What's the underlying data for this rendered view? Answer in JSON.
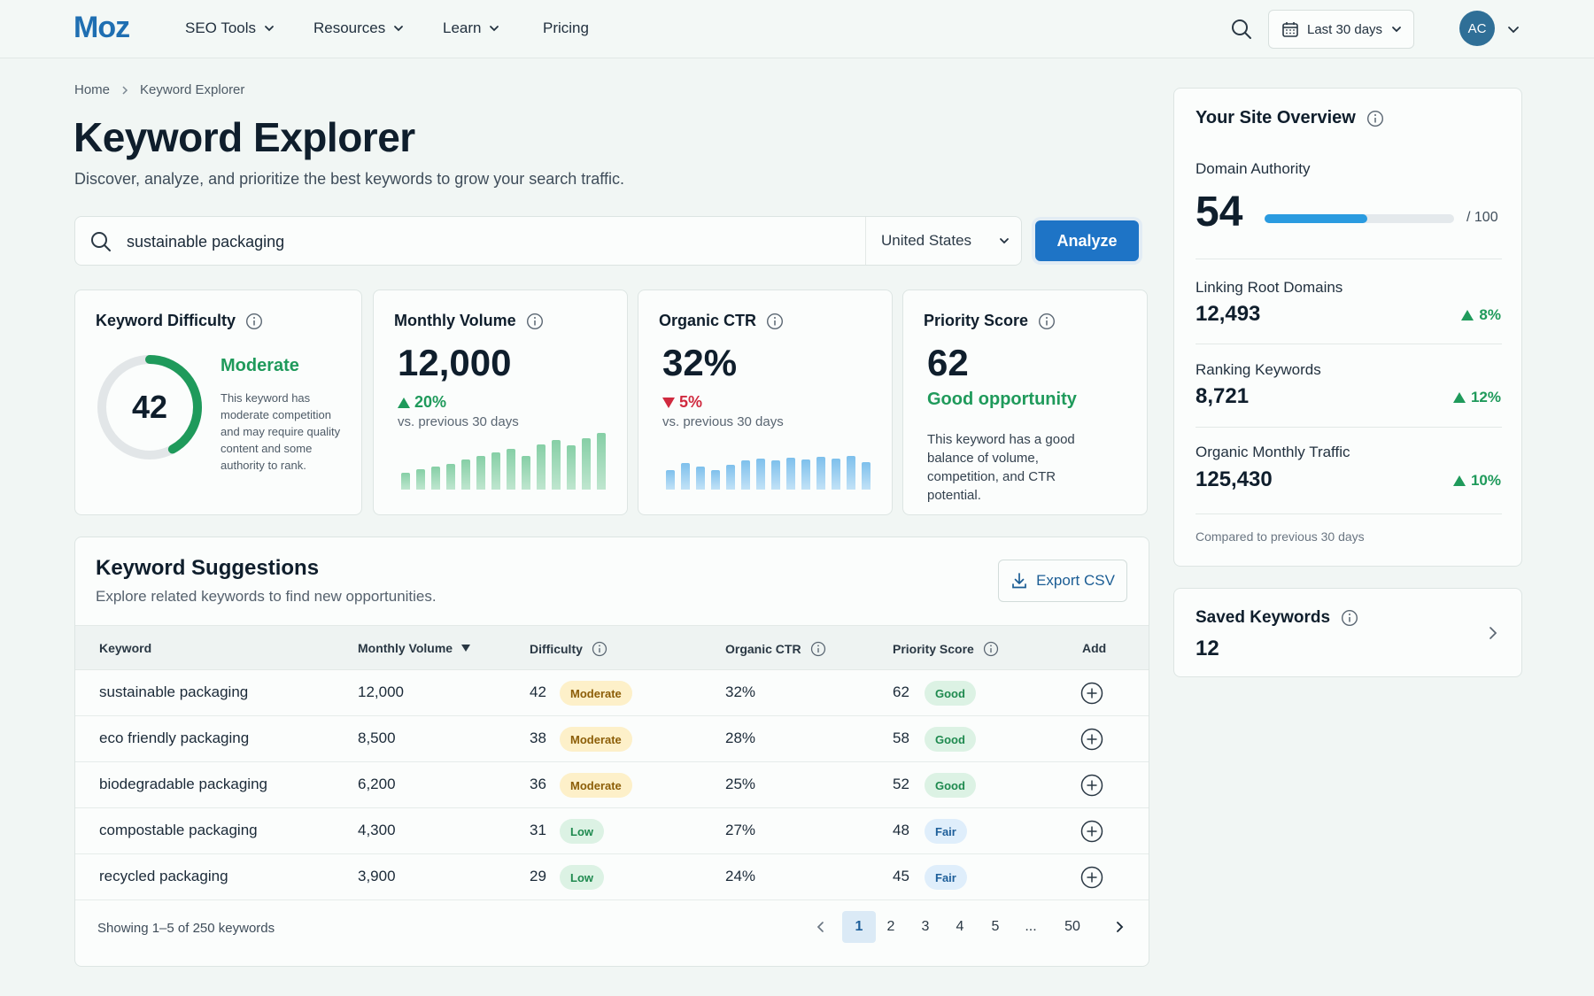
{
  "nav": {
    "logo": "Moz",
    "items": [
      {
        "label": "SEO Tools",
        "has_menu": true
      },
      {
        "label": "Resources",
        "has_menu": true
      },
      {
        "label": "Learn",
        "has_menu": true
      },
      {
        "label": "Pricing",
        "has_menu": false
      }
    ],
    "date_range": "Last 30 days",
    "avatar_initials": "AC"
  },
  "breadcrumb": {
    "home": "Home",
    "current": "Keyword Explorer"
  },
  "page": {
    "title": "Keyword Explorer",
    "subtitle": "Discover, analyze, and prioritize the best keywords to grow your search traffic."
  },
  "search": {
    "value": "sustainable packaging",
    "country": "United States",
    "button": "Analyze"
  },
  "metrics": {
    "difficulty": {
      "title": "Keyword Difficulty",
      "value": 42,
      "value_text": "42",
      "label": "Moderate",
      "description": "This keyword has moderate competition and may require quality content and some authority to rank.",
      "gauge_fraction": 0.42
    },
    "volume": {
      "title": "Monthly Volume",
      "value": "12,000",
      "trend": "20%",
      "trend_dir": "up",
      "trend_note": "vs. previous 30 days",
      "spark": [
        0.3,
        0.36,
        0.4,
        0.46,
        0.53,
        0.6,
        0.66,
        0.72,
        0.6,
        0.8,
        0.88,
        0.78,
        0.9,
        1.0
      ]
    },
    "ctr": {
      "title": "Organic CTR",
      "value": "32%",
      "trend": "5%",
      "trend_dir": "down",
      "trend_note": "vs. previous 30 days",
      "spark": [
        0.55,
        0.75,
        0.65,
        0.55,
        0.7,
        0.82,
        0.88,
        0.82,
        0.9,
        0.85,
        0.92,
        0.88,
        0.95,
        0.78
      ]
    },
    "priority": {
      "title": "Priority Score",
      "value": "62",
      "label": "Good opportunity",
      "description": "This keyword has a good balance of volume, competition, and CTR potential."
    }
  },
  "suggestions": {
    "title": "Keyword Suggestions",
    "subtitle": "Explore related keywords to find new opportunities.",
    "export_label": "Export CSV",
    "columns": {
      "keyword": "Keyword",
      "volume": "Monthly Volume",
      "difficulty": "Difficulty",
      "ctr": "Organic CTR",
      "priority": "Priority Score",
      "add": "Add"
    },
    "rows": [
      {
        "keyword": "sustainable packaging",
        "volume": "12,000",
        "difficulty": "42",
        "difficulty_label": "Moderate",
        "difficulty_kind": "moderate",
        "ctr": "32%",
        "priority": "62",
        "priority_label": "Good",
        "priority_kind": "good"
      },
      {
        "keyword": "eco friendly packaging",
        "volume": "8,500",
        "difficulty": "38",
        "difficulty_label": "Moderate",
        "difficulty_kind": "moderate",
        "ctr": "28%",
        "priority": "58",
        "priority_label": "Good",
        "priority_kind": "good"
      },
      {
        "keyword": "biodegradable packaging",
        "volume": "6,200",
        "difficulty": "36",
        "difficulty_label": "Moderate",
        "difficulty_kind": "moderate",
        "ctr": "25%",
        "priority": "52",
        "priority_label": "Good",
        "priority_kind": "good"
      },
      {
        "keyword": "compostable packaging",
        "volume": "4,300",
        "difficulty": "31",
        "difficulty_label": "Low",
        "difficulty_kind": "low",
        "ctr": "27%",
        "priority": "48",
        "priority_label": "Fair",
        "priority_kind": "fair"
      },
      {
        "keyword": "recycled packaging",
        "volume": "3,900",
        "difficulty": "29",
        "difficulty_label": "Low",
        "difficulty_kind": "low",
        "ctr": "24%",
        "priority": "45",
        "priority_label": "Fair",
        "priority_kind": "fair"
      }
    ],
    "showing": "Showing 1–5 of 250 keywords",
    "pages": [
      "1",
      "2",
      "3",
      "4",
      "5",
      "...",
      "50"
    ],
    "current_page": "1"
  },
  "site_overview": {
    "title": "Your Site Overview",
    "da_label": "Domain Authority",
    "da_value": "54",
    "da_max": "/ 100",
    "da_fraction": 0.54,
    "stats": [
      {
        "label": "Linking Root Domains",
        "value": "12,493",
        "trend": "8%"
      },
      {
        "label": "Ranking Keywords",
        "value": "8,721",
        "trend": "12%"
      },
      {
        "label": "Organic Monthly Traffic",
        "value": "125,430",
        "trend": "10%"
      }
    ],
    "footnote": "Compared to previous 30 days"
  },
  "saved": {
    "title": "Saved Keywords",
    "count": "12"
  },
  "colors": {
    "brand": "#1f6fb2",
    "accent": "#1e74c6",
    "positive": "#1f9a5b",
    "negative": "#d02a3f"
  }
}
